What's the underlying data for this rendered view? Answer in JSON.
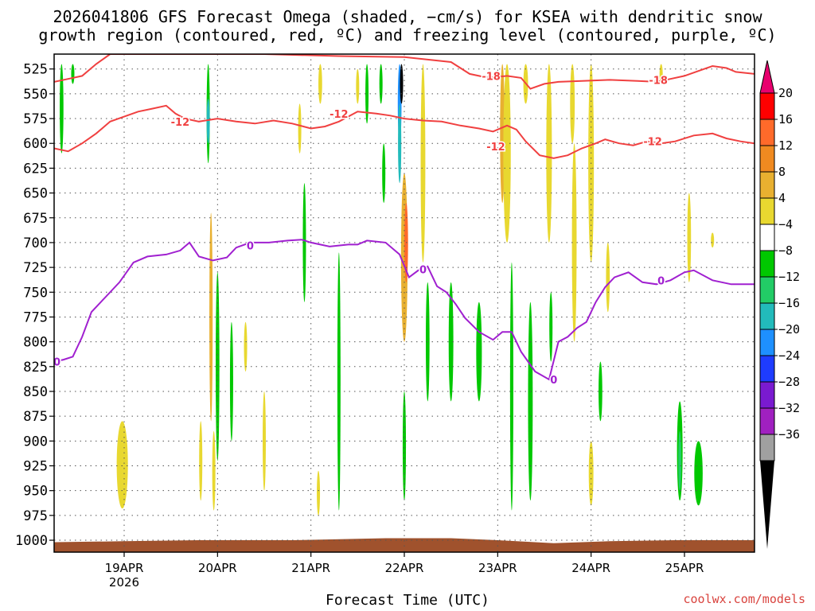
{
  "header": {
    "title_line1": "2026041806 GFS Forecast Omega (shaded, −cm/s) for KSEA with dendritic snow",
    "title_line2": "growth region (contoured, red, ºC) and freezing level (contoured, purple, ºC)",
    "credit": "coolwx.com/models"
  },
  "chart_data": {
    "type": "heatmap",
    "title": "2026041806 GFS Forecast Omega (shaded, −cm/s) for KSEA with dendritic snow growth region (contoured, red, ºC) and freezing level (contoured, purple, ºC)",
    "xlabel": "Forecast Time (UTC)",
    "ylabel": "",
    "x_ticks": [
      {
        "label": "19APR",
        "sub": "2026",
        "day": 19
      },
      {
        "label": "20APR",
        "day": 20
      },
      {
        "label": "21APR",
        "day": 21
      },
      {
        "label": "22APR",
        "day": 22
      },
      {
        "label": "23APR",
        "day": 23
      },
      {
        "label": "24APR",
        "day": 24
      },
      {
        "label": "25APR",
        "day": 25
      }
    ],
    "x_range_days": [
      18.25,
      25.75
    ],
    "y_levels": [
      525,
      550,
      575,
      600,
      625,
      650,
      675,
      700,
      725,
      750,
      775,
      800,
      825,
      850,
      875,
      900,
      925,
      950,
      975,
      1000
    ],
    "y_range_hpa": [
      510,
      1012
    ],
    "colorbar": {
      "labels": [
        "20",
        "16",
        "12",
        "8",
        "4",
        "−4",
        "−8",
        "−12",
        "−16",
        "−20",
        "−24",
        "−28",
        "−32",
        "−36"
      ],
      "colors": [
        "#ff0000",
        "#ff6a2a",
        "#f08a20",
        "#e8b030",
        "#e8d830",
        "#ffffff",
        "#00c800",
        "#22cc66",
        "#22bbbb",
        "#1e90ff",
        "#1e3cff",
        "#7a1ad0",
        "#a020c0",
        "#a0a0a0"
      ],
      "top_arrow_color": "#e8006e",
      "bottom_arrow_color": "#000000"
    },
    "contours": [
      {
        "label": "-18",
        "color": "#f04040",
        "points": [
          [
            18.25,
            538
          ],
          [
            18.4,
            535
          ],
          [
            18.55,
            532
          ],
          [
            18.7,
            520
          ],
          [
            18.85,
            510
          ],
          [
            19.5,
            510
          ],
          [
            20.5,
            510
          ],
          [
            21.3,
            512
          ],
          [
            22.0,
            513
          ],
          [
            22.5,
            518
          ],
          [
            22.7,
            530
          ],
          [
            22.9,
            534
          ],
          [
            23.1,
            532
          ],
          [
            23.25,
            534
          ],
          [
            23.35,
            545
          ],
          [
            23.5,
            540
          ],
          [
            23.65,
            538
          ],
          [
            23.9,
            537
          ],
          [
            24.2,
            536
          ],
          [
            24.5,
            537
          ],
          [
            24.7,
            538
          ],
          [
            24.85,
            535
          ],
          [
            25.0,
            532
          ],
          [
            25.15,
            527
          ],
          [
            25.3,
            522
          ],
          [
            25.45,
            524
          ],
          [
            25.55,
            528
          ],
          [
            25.75,
            530
          ]
        ],
        "label_at": [
          [
            22.93,
            532
          ],
          [
            24.72,
            536
          ]
        ]
      },
      {
        "label": "-12",
        "color": "#f04040",
        "points": [
          [
            18.25,
            605
          ],
          [
            18.4,
            608
          ],
          [
            18.55,
            600
          ],
          [
            18.7,
            590
          ],
          [
            18.85,
            578
          ],
          [
            19.0,
            573
          ],
          [
            19.15,
            568
          ],
          [
            19.3,
            565
          ],
          [
            19.45,
            562
          ],
          [
            19.55,
            570
          ],
          [
            19.65,
            575
          ],
          [
            19.8,
            578
          ],
          [
            20.0,
            575
          ],
          [
            20.2,
            578
          ],
          [
            20.4,
            580
          ],
          [
            20.6,
            577
          ],
          [
            20.8,
            580
          ],
          [
            21.0,
            585
          ],
          [
            21.15,
            583
          ],
          [
            21.3,
            578
          ],
          [
            21.5,
            568
          ],
          [
            21.7,
            570
          ],
          [
            21.85,
            572
          ],
          [
            22.0,
            575
          ],
          [
            22.2,
            577
          ],
          [
            22.4,
            578
          ],
          [
            22.6,
            582
          ],
          [
            22.8,
            585
          ],
          [
            22.95,
            588
          ],
          [
            23.1,
            582
          ],
          [
            23.2,
            586
          ],
          [
            23.3,
            598
          ],
          [
            23.45,
            612
          ],
          [
            23.6,
            615
          ],
          [
            23.75,
            612
          ],
          [
            23.9,
            605
          ],
          [
            24.05,
            600
          ],
          [
            24.15,
            596
          ],
          [
            24.3,
            600
          ],
          [
            24.45,
            602
          ],
          [
            24.6,
            598
          ],
          [
            24.75,
            600
          ],
          [
            24.9,
            598
          ],
          [
            25.1,
            592
          ],
          [
            25.3,
            590
          ],
          [
            25.45,
            595
          ],
          [
            25.6,
            598
          ],
          [
            25.75,
            600
          ]
        ],
        "label_at": [
          [
            19.6,
            578
          ],
          [
            21.3,
            570
          ],
          [
            22.98,
            603
          ],
          [
            24.66,
            598
          ]
        ]
      },
      {
        "label": "0",
        "color": "#a020d0",
        "points": [
          [
            18.25,
            820
          ],
          [
            18.35,
            818
          ],
          [
            18.45,
            815
          ],
          [
            18.55,
            795
          ],
          [
            18.65,
            770
          ],
          [
            18.8,
            755
          ],
          [
            18.95,
            740
          ],
          [
            19.1,
            720
          ],
          [
            19.25,
            714
          ],
          [
            19.45,
            712
          ],
          [
            19.6,
            708
          ],
          [
            19.7,
            700
          ],
          [
            19.8,
            714
          ],
          [
            19.95,
            718
          ],
          [
            20.1,
            715
          ],
          [
            20.2,
            705
          ],
          [
            20.35,
            700
          ],
          [
            20.55,
            700
          ],
          [
            20.75,
            698
          ],
          [
            20.9,
            697
          ],
          [
            21.0,
            700
          ],
          [
            21.2,
            704
          ],
          [
            21.4,
            702
          ],
          [
            21.5,
            702
          ],
          [
            21.6,
            698
          ],
          [
            21.8,
            700
          ],
          [
            21.95,
            712
          ],
          [
            22.05,
            735
          ],
          [
            22.15,
            728
          ],
          [
            22.25,
            724
          ],
          [
            22.35,
            744
          ],
          [
            22.45,
            750
          ],
          [
            22.55,
            762
          ],
          [
            22.65,
            776
          ],
          [
            22.8,
            790
          ],
          [
            22.95,
            798
          ],
          [
            23.05,
            790
          ],
          [
            23.15,
            790
          ],
          [
            23.25,
            810
          ],
          [
            23.4,
            830
          ],
          [
            23.55,
            838
          ],
          [
            23.65,
            800
          ],
          [
            23.75,
            795
          ],
          [
            23.85,
            786
          ],
          [
            23.95,
            780
          ],
          [
            24.05,
            760
          ],
          [
            24.15,
            745
          ],
          [
            24.25,
            735
          ],
          [
            24.4,
            730
          ],
          [
            24.55,
            740
          ],
          [
            24.7,
            742
          ],
          [
            24.85,
            738
          ],
          [
            25.0,
            730
          ],
          [
            25.1,
            728
          ],
          [
            25.3,
            738
          ],
          [
            25.5,
            742
          ],
          [
            25.75,
            742
          ]
        ],
        "label_at": [
          [
            18.28,
            820
          ],
          [
            20.35,
            703
          ],
          [
            22.2,
            727
          ],
          [
            23.6,
            838
          ],
          [
            24.75,
            738
          ]
        ]
      }
    ],
    "omega_blobs": [
      {
        "x": 18.33,
        "p1": 520,
        "p2": 610,
        "w": 0.04,
        "color": "#00c800"
      },
      {
        "x": 18.45,
        "p1": 520,
        "p2": 540,
        "w": 0.02,
        "color": "#00c800"
      },
      {
        "x": 18.98,
        "p1": 880,
        "p2": 968,
        "w": 0.12,
        "color": "#e8d830"
      },
      {
        "x": 19.9,
        "p1": 520,
        "p2": 620,
        "w": 0.03,
        "color": "#00c800"
      },
      {
        "x": 19.9,
        "p1": 555,
        "p2": 600,
        "w": 0.02,
        "color": "#22bbbb"
      },
      {
        "x": 19.93,
        "p1": 670,
        "p2": 880,
        "w": 0.035,
        "color": "#e8b030"
      },
      {
        "x": 20.0,
        "p1": 730,
        "p2": 920,
        "w": 0.04,
        "color": "#00c800"
      },
      {
        "x": 19.82,
        "p1": 880,
        "p2": 960,
        "w": 0.02,
        "color": "#e8d830"
      },
      {
        "x": 19.96,
        "p1": 890,
        "p2": 970,
        "w": 0.02,
        "color": "#e8d830"
      },
      {
        "x": 20.15,
        "p1": 780,
        "p2": 900,
        "w": 0.025,
        "color": "#00c800"
      },
      {
        "x": 20.3,
        "p1": 780,
        "p2": 830,
        "w": 0.015,
        "color": "#e8d830"
      },
      {
        "x": 20.5,
        "p1": 850,
        "p2": 950,
        "w": 0.015,
        "color": "#e8d830"
      },
      {
        "x": 20.93,
        "p1": 640,
        "p2": 760,
        "w": 0.025,
        "color": "#00c800"
      },
      {
        "x": 20.88,
        "p1": 560,
        "p2": 610,
        "w": 0.015,
        "color": "#e8d830"
      },
      {
        "x": 21.1,
        "p1": 520,
        "p2": 560,
        "w": 0.04,
        "color": "#e8d830"
      },
      {
        "x": 21.08,
        "p1": 930,
        "p2": 975,
        "w": 0.03,
        "color": "#e8d830"
      },
      {
        "x": 21.3,
        "p1": 710,
        "p2": 970,
        "w": 0.02,
        "color": "#00c800"
      },
      {
        "x": 21.6,
        "p1": 520,
        "p2": 580,
        "w": 0.03,
        "color": "#00c800"
      },
      {
        "x": 21.5,
        "p1": 525,
        "p2": 560,
        "w": 0.02,
        "color": "#e8d830"
      },
      {
        "x": 21.75,
        "p1": 520,
        "p2": 560,
        "w": 0.025,
        "color": "#00c800"
      },
      {
        "x": 21.78,
        "p1": 600,
        "p2": 660,
        "w": 0.02,
        "color": "#00c800"
      },
      {
        "x": 21.95,
        "p1": 520,
        "p2": 600,
        "w": 0.04,
        "color": "#1e90ff"
      },
      {
        "x": 21.97,
        "p1": 520,
        "p2": 560,
        "w": 0.02,
        "color": "#000000"
      },
      {
        "x": 21.95,
        "p1": 560,
        "p2": 640,
        "w": 0.035,
        "color": "#22bbbb"
      },
      {
        "x": 22.0,
        "p1": 630,
        "p2": 800,
        "w": 0.07,
        "color": "#e8b030"
      },
      {
        "x": 22.02,
        "p1": 660,
        "p2": 740,
        "w": 0.04,
        "color": "#ff6a2a"
      },
      {
        "x": 22.0,
        "p1": 850,
        "p2": 960,
        "w": 0.035,
        "color": "#00c800"
      },
      {
        "x": 22.2,
        "p1": 520,
        "p2": 720,
        "w": 0.05,
        "color": "#e8d830"
      },
      {
        "x": 22.25,
        "p1": 740,
        "p2": 860,
        "w": 0.04,
        "color": "#00c800"
      },
      {
        "x": 22.5,
        "p1": 740,
        "p2": 860,
        "w": 0.05,
        "color": "#00c800"
      },
      {
        "x": 22.8,
        "p1": 760,
        "p2": 860,
        "w": 0.06,
        "color": "#00c800"
      },
      {
        "x": 23.05,
        "p1": 520,
        "p2": 660,
        "w": 0.05,
        "color": "#e8b030"
      },
      {
        "x": 23.1,
        "p1": 520,
        "p2": 700,
        "w": 0.08,
        "color": "#e8d830"
      },
      {
        "x": 23.15,
        "p1": 720,
        "p2": 970,
        "w": 0.035,
        "color": "#00c800"
      },
      {
        "x": 23.35,
        "p1": 760,
        "p2": 960,
        "w": 0.05,
        "color": "#00c800"
      },
      {
        "x": 23.3,
        "p1": 520,
        "p2": 560,
        "w": 0.05,
        "color": "#e8d830"
      },
      {
        "x": 23.55,
        "p1": 520,
        "p2": 700,
        "w": 0.06,
        "color": "#e8d830"
      },
      {
        "x": 23.8,
        "p1": 520,
        "p2": 600,
        "w": 0.05,
        "color": "#e8d830"
      },
      {
        "x": 23.82,
        "p1": 600,
        "p2": 800,
        "w": 0.05,
        "color": "#e8d830"
      },
      {
        "x": 23.57,
        "p1": 750,
        "p2": 820,
        "w": 0.02,
        "color": "#00c800"
      },
      {
        "x": 24.0,
        "p1": 520,
        "p2": 720,
        "w": 0.06,
        "color": "#e8d830"
      },
      {
        "x": 24.18,
        "p1": 700,
        "p2": 770,
        "w": 0.04,
        "color": "#e8d830"
      },
      {
        "x": 24.0,
        "p1": 900,
        "p2": 965,
        "w": 0.05,
        "color": "#e8d830"
      },
      {
        "x": 24.1,
        "p1": 820,
        "p2": 880,
        "w": 0.04,
        "color": "#00c800"
      },
      {
        "x": 24.95,
        "p1": 860,
        "p2": 960,
        "w": 0.06,
        "color": "#00c800"
      },
      {
        "x": 24.95,
        "p1": 890,
        "p2": 950,
        "w": 0.03,
        "color": "#22cc66"
      },
      {
        "x": 25.15,
        "p1": 900,
        "p2": 965,
        "w": 0.09,
        "color": "#00c800"
      },
      {
        "x": 25.05,
        "p1": 650,
        "p2": 740,
        "w": 0.04,
        "color": "#e8d830"
      },
      {
        "x": 24.75,
        "p1": 520,
        "p2": 540,
        "w": 0.03,
        "color": "#e8d830"
      },
      {
        "x": 25.3,
        "p1": 690,
        "p2": 705,
        "w": 0.03,
        "color": "#e8d830"
      }
    ]
  }
}
